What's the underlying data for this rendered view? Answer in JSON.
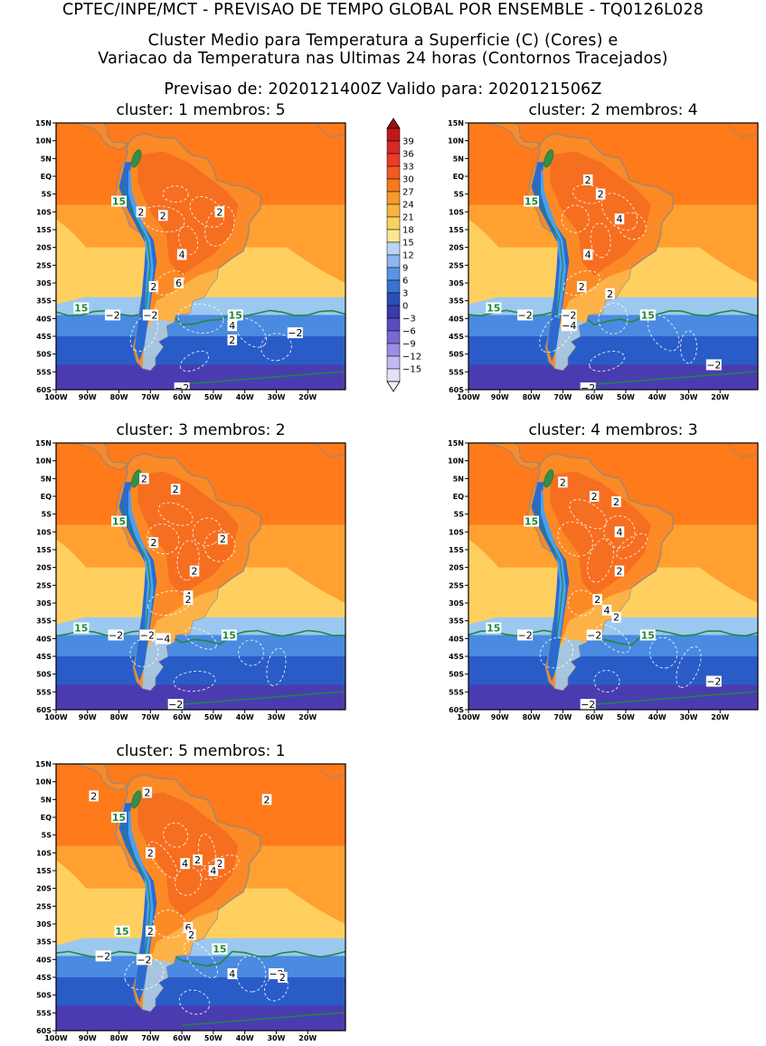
{
  "header": {
    "line1": "CPTEC/INPE/MCT - PREVISAO DE TEMPO GLOBAL POR ENSEMBLE - TQ0126L028",
    "line2": "Cluster Medio para Temperatura a Superficie (C) (Cores) e",
    "line3": "Variacao da Temperatura nas Ultimas 24 horas (Contornos Tracejados)",
    "line4": "Previsao de: 2020121400Z   Valido para: 2020121506Z"
  },
  "panels": [
    {
      "title": "cluster: 1   membros: 5",
      "labels": [
        "15",
        "2",
        "2",
        "2",
        "4",
        "6",
        "2",
        "15",
        "15",
        "-2",
        "-2",
        "4",
        "2",
        "-2",
        "-2"
      ]
    },
    {
      "title": "cluster: 2   membros: 4",
      "labels": [
        "2",
        "2",
        "15",
        "4",
        "4",
        "2",
        "2",
        "15",
        "15",
        "-2",
        "-2",
        "-4",
        "-2",
        "-2"
      ]
    },
    {
      "title": "cluster: 3   membros: 2",
      "labels": [
        "2",
        "2",
        "15",
        "2",
        "2",
        "2",
        "4",
        "2",
        "15",
        "15",
        "-2",
        "-2",
        "-4",
        "-2"
      ]
    },
    {
      "title": "cluster: 4   membros: 3",
      "labels": [
        "2",
        "2",
        "2",
        "15",
        "4",
        "2",
        "2",
        "4",
        "2",
        "15",
        "15",
        "-2",
        "-2",
        "-2",
        "-2"
      ]
    },
    {
      "title": "cluster: 5   membros: 1",
      "labels": [
        "2",
        "2",
        "15",
        "2",
        "2",
        "4",
        "2",
        "4",
        "2",
        "6",
        "2",
        "15",
        "15",
        "-2",
        "-2",
        "4",
        "-2",
        "2",
        "2"
      ]
    }
  ],
  "axes": {
    "lat_labels": [
      "15N",
      "10N",
      "5N",
      "EQ",
      "5S",
      "10S",
      "15S",
      "20S",
      "25S",
      "30S",
      "35S",
      "40S",
      "45S",
      "50S",
      "55S",
      "60S"
    ],
    "lon_labels": [
      "100W",
      "90W",
      "80W",
      "70W",
      "60W",
      "50W",
      "40W",
      "30W",
      "20W"
    ]
  },
  "colorbar": {
    "levels": [
      "39",
      "36",
      "33",
      "30",
      "27",
      "24",
      "21",
      "18",
      "15",
      "12",
      "9",
      "6",
      "3",
      "0",
      "-3",
      "-6",
      "-9",
      "-12",
      "-15"
    ],
    "colors": [
      "#c01818",
      "#d82828",
      "#ec3c26",
      "#f45a22",
      "#f77a1e",
      "#f89a2a",
      "#f9b440",
      "#f8d260",
      "#fae890",
      "#bcd4f4",
      "#8cb6ee",
      "#5c94e2",
      "#3a72d4",
      "#2850b8",
      "#3a3aa8",
      "#5a4cc4",
      "#7a68d6",
      "#9c8ce6",
      "#c2b8f2",
      "#e6e0fa"
    ],
    "arrow_top": "#9a1212",
    "arrow_bottom": "#f2f0fc"
  },
  "map_colors": {
    "ocean_tropical": "#ff7a1a",
    "ocean_warm": "#ffa030",
    "ocean_mild": "#ffd060",
    "ocean_cool": "#9cc8f0",
    "ocean_cold": "#4a8ae0",
    "ocean_colder": "#2a5cc8",
    "ocean_polar": "#4a3cb0",
    "land_hot": "#f56820",
    "land_warm": "#fb8a26",
    "land_mild": "#fcb64a",
    "andes": "#2a6ad0",
    "andes_core": "#4aa0f0",
    "isotherm": "#1f8a3a",
    "dashed": "#ffffff",
    "coast": "#8a8a8a"
  }
}
